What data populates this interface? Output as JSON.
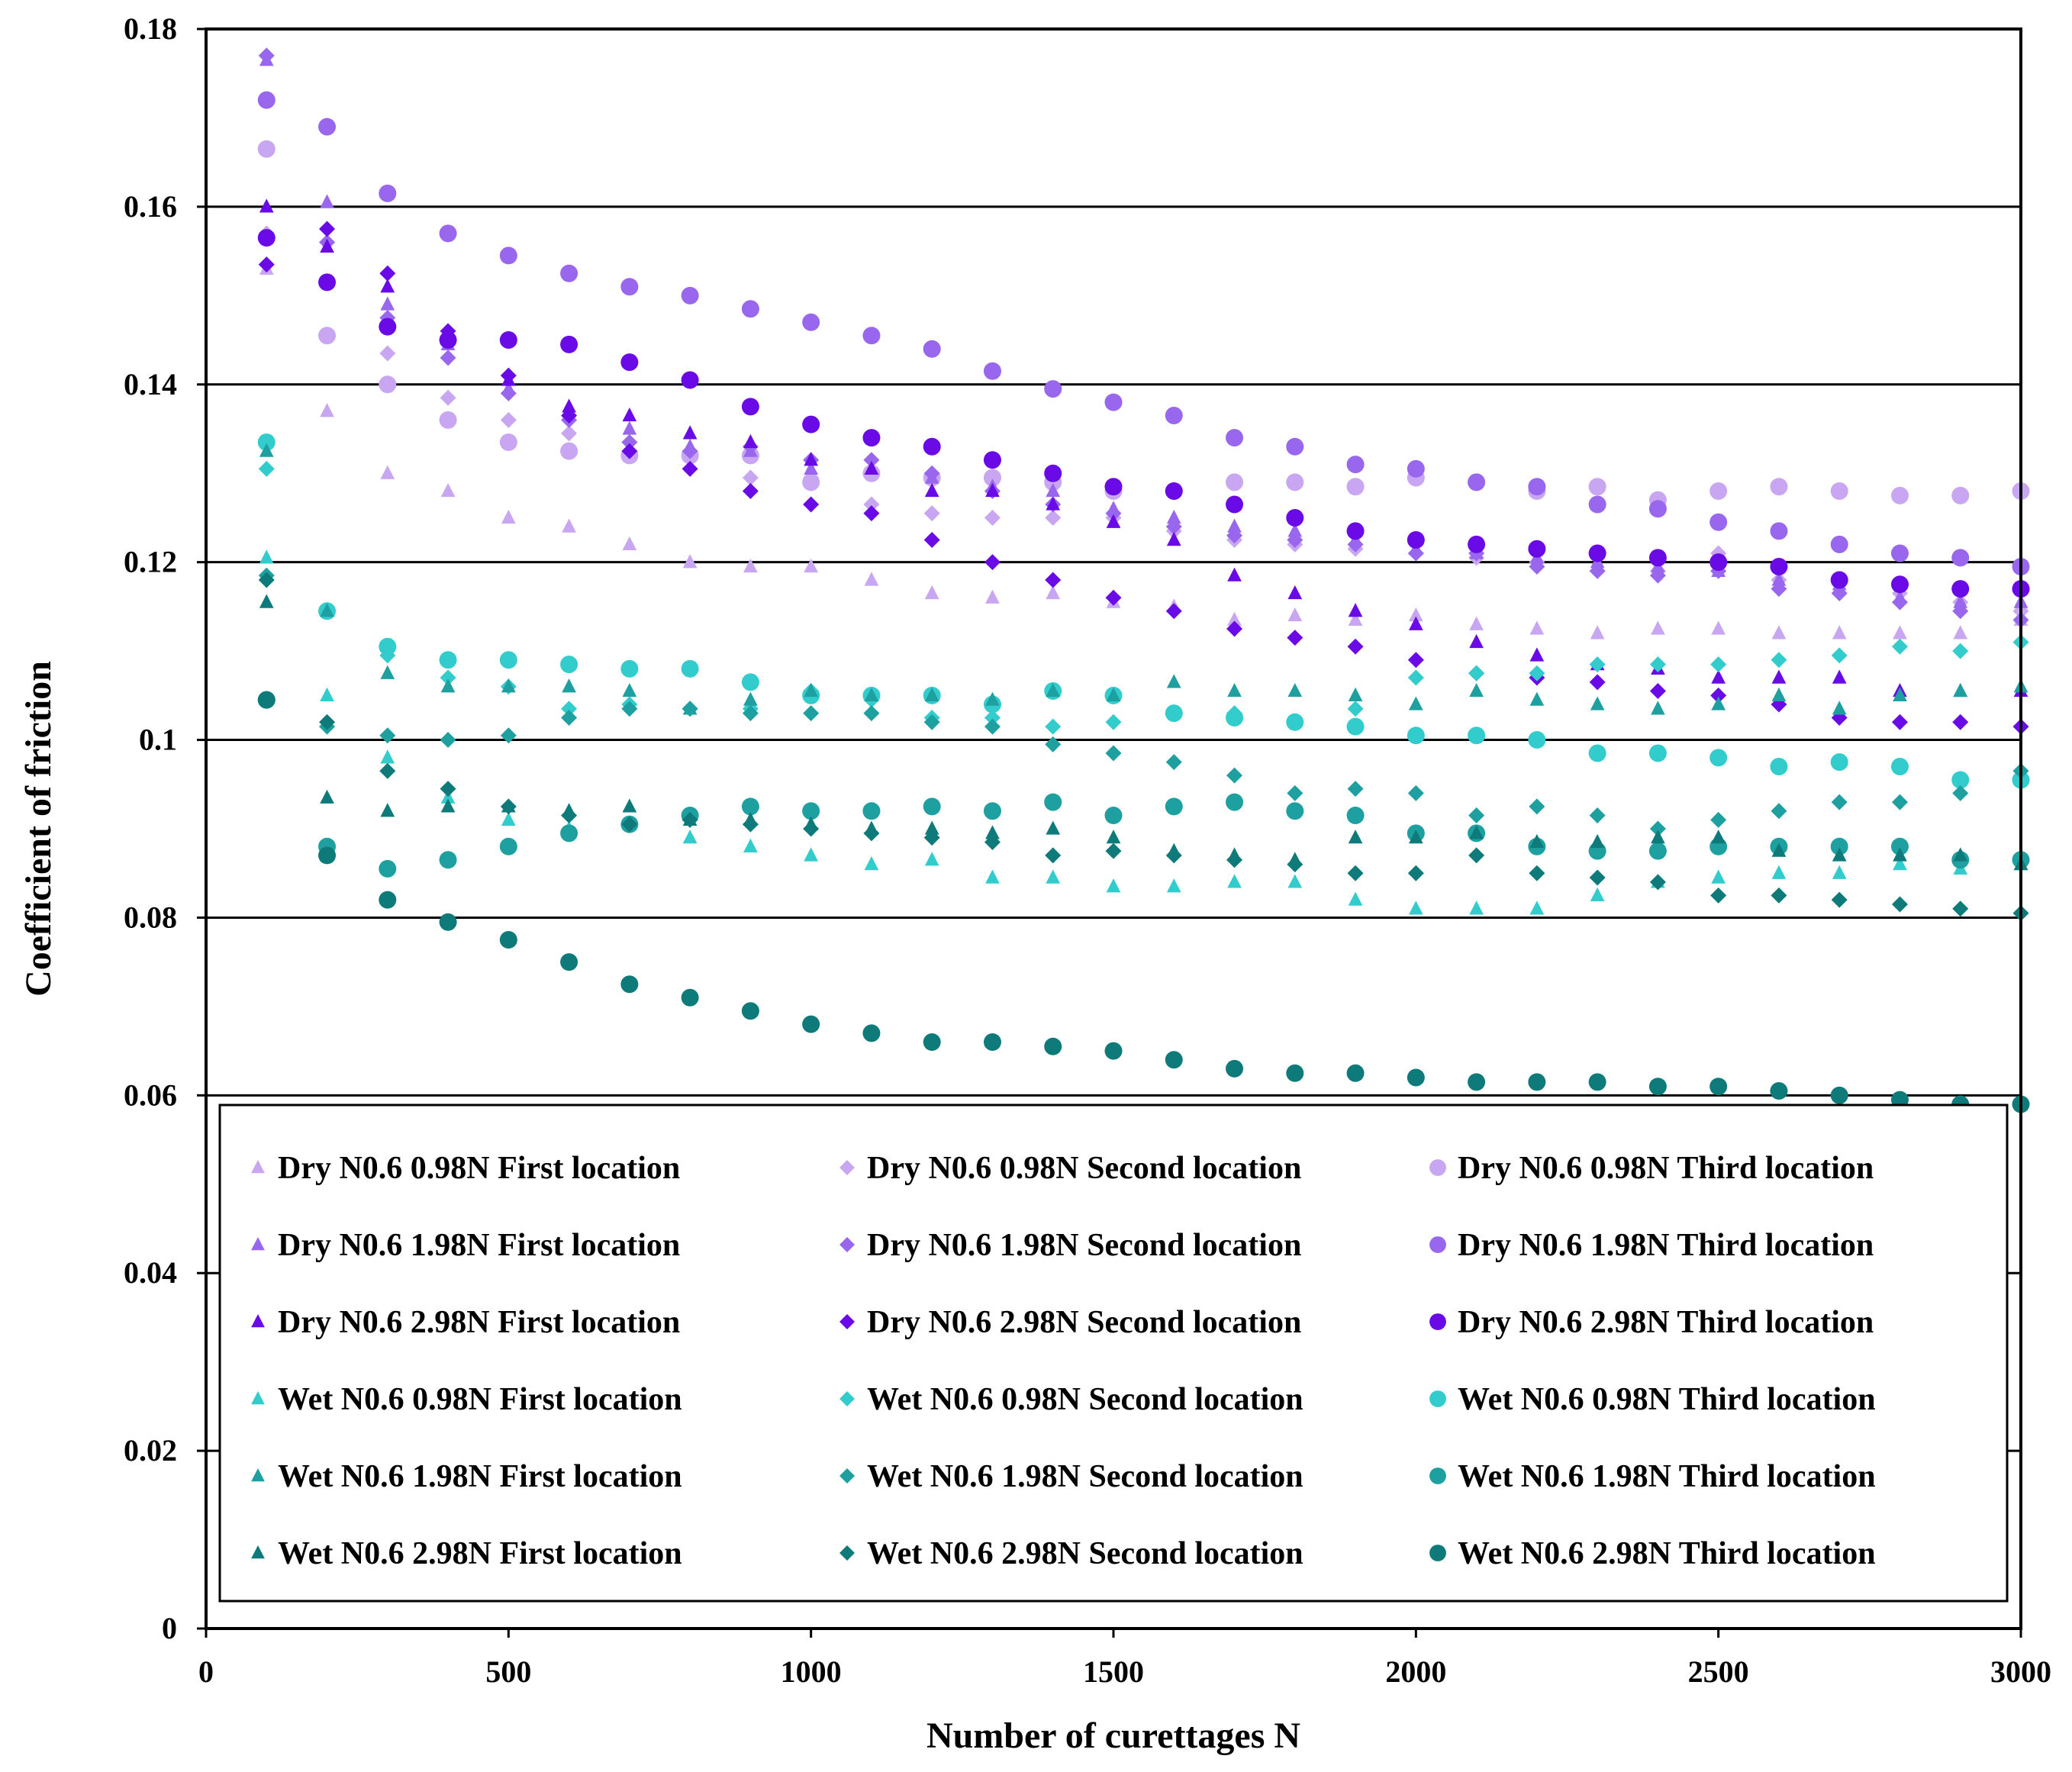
{
  "chart_data": {
    "type": "scatter",
    "xlabel": "Number  of curettages N",
    "ylabel": "Coefficient  of friction",
    "xlim": [
      0,
      3000
    ],
    "ylim": [
      0,
      0.18
    ],
    "x_ticks": [
      0,
      500,
      1000,
      1500,
      2000,
      2500,
      3000
    ],
    "y_ticks": [
      0,
      0.02,
      0.04,
      0.06,
      0.08,
      0.1,
      0.12,
      0.14,
      0.16,
      0.18
    ],
    "x_tick_labels": [
      "0",
      "500",
      "1000",
      "1500",
      "2000",
      "2500",
      "3000"
    ],
    "y_tick_labels": [
      "0",
      "0.02",
      "0.04",
      "0.06",
      "0.08",
      "0.1",
      "0.12",
      "0.14",
      "0.16",
      "0.18"
    ],
    "gridlines": "horizontal",
    "legend_position": "bottom-inside",
    "x": [
      100,
      200,
      300,
      400,
      500,
      600,
      700,
      800,
      900,
      1000,
      1100,
      1200,
      1300,
      1400,
      1500,
      1600,
      1700,
      1800,
      1900,
      2000,
      2100,
      2200,
      2300,
      2400,
      2500,
      2600,
      2700,
      2800,
      2900,
      3000
    ],
    "series": [
      {
        "name": "Dry N0.6 0.98N First location",
        "marker": "triangle",
        "color": "#c9a6f2",
        "values": [
          0.153,
          0.137,
          0.13,
          0.128,
          0.125,
          0.124,
          0.122,
          0.12,
          0.1195,
          0.1195,
          0.118,
          0.1165,
          0.116,
          0.1165,
          0.1155,
          0.115,
          0.1135,
          0.114,
          0.1135,
          0.114,
          0.113,
          0.1125,
          0.112,
          0.1125,
          0.1125,
          0.112,
          0.112,
          0.112,
          0.112,
          0.1135
        ]
      },
      {
        "name": "Dry N0.6 0.98N Second location",
        "marker": "diamond",
        "color": "#c9a6f2",
        "values": [
          0.157,
          0.1455,
          0.1435,
          0.1385,
          0.136,
          0.1345,
          0.1335,
          0.1325,
          0.1295,
          0.1295,
          0.1265,
          0.1255,
          0.125,
          0.125,
          0.125,
          0.1235,
          0.1225,
          0.122,
          0.1215,
          0.121,
          0.1205,
          0.12,
          0.119,
          0.119,
          0.121,
          0.118,
          0.1165,
          0.1165,
          0.1155,
          0.1145
        ]
      },
      {
        "name": "Dry N0.6 0.98N Third location",
        "marker": "circle",
        "color": "#c9a6f2",
        "values": [
          0.1665,
          0.1455,
          0.14,
          0.136,
          0.1335,
          0.1325,
          0.132,
          0.132,
          0.132,
          0.129,
          0.13,
          0.1295,
          0.1295,
          0.129,
          0.128,
          0.128,
          0.129,
          0.129,
          0.1285,
          0.1295,
          0.129,
          0.128,
          0.1285,
          0.127,
          0.128,
          0.1285,
          0.128,
          0.1275,
          0.1275,
          0.128
        ]
      },
      {
        "name": "Dry N0.6 1.98N First location",
        "marker": "triangle",
        "color": "#9966ee",
        "values": [
          0.1765,
          0.1605,
          0.149,
          0.1445,
          0.1395,
          0.137,
          0.135,
          0.133,
          0.1325,
          0.1305,
          0.1305,
          0.1295,
          0.1285,
          0.128,
          0.126,
          0.125,
          0.124,
          0.1235,
          0.1225,
          0.1215,
          0.121,
          0.1205,
          0.12,
          0.1195,
          0.119,
          0.118,
          0.1175,
          0.116,
          0.1155,
          0.1155
        ]
      },
      {
        "name": "Dry N0.6 1.98N Second location",
        "marker": "diamond",
        "color": "#9966ee",
        "values": [
          0.177,
          0.156,
          0.1475,
          0.143,
          0.139,
          0.136,
          0.1335,
          0.1325,
          0.133,
          0.1315,
          0.1315,
          0.13,
          0.128,
          0.1265,
          0.1255,
          0.124,
          0.123,
          0.1225,
          0.122,
          0.121,
          0.121,
          0.1195,
          0.119,
          0.1185,
          0.119,
          0.117,
          0.1165,
          0.1155,
          0.1145,
          0.1135
        ]
      },
      {
        "name": "Dry N0.6 1.98N Third location",
        "marker": "circle",
        "color": "#9966ee",
        "values": [
          0.172,
          0.169,
          0.1615,
          0.157,
          0.1545,
          0.1525,
          0.151,
          0.15,
          0.1485,
          0.147,
          0.1455,
          0.144,
          0.1415,
          0.1395,
          0.138,
          0.1365,
          0.134,
          0.133,
          0.131,
          0.1305,
          0.129,
          0.1285,
          0.1265,
          0.126,
          0.1245,
          0.1235,
          0.122,
          0.121,
          0.1205,
          0.1195
        ]
      },
      {
        "name": "Dry N0.6 2.98N First location",
        "marker": "triangle",
        "color": "#6a0ae6",
        "values": [
          0.16,
          0.1555,
          0.151,
          0.1455,
          0.1405,
          0.1375,
          0.1365,
          0.1345,
          0.1335,
          0.1315,
          0.1305,
          0.128,
          0.128,
          0.1265,
          0.1245,
          0.1225,
          0.1185,
          0.1165,
          0.1145,
          0.113,
          0.111,
          0.1095,
          0.1085,
          0.108,
          0.107,
          0.107,
          0.107,
          0.1055,
          0.1055,
          0.1055
        ]
      },
      {
        "name": "Dry N0.6 2.98N Second location",
        "marker": "diamond",
        "color": "#6a0ae6",
        "values": [
          0.1535,
          0.1575,
          0.1525,
          0.146,
          0.141,
          0.1365,
          0.1325,
          0.1305,
          0.128,
          0.1265,
          0.1255,
          0.1225,
          0.12,
          0.118,
          0.116,
          0.1145,
          0.1125,
          0.1115,
          0.1105,
          0.109,
          0.1075,
          0.107,
          0.1065,
          0.1055,
          0.105,
          0.104,
          0.1025,
          0.102,
          0.102,
          0.1015
        ]
      },
      {
        "name": "Dry N0.6 2.98N Third location",
        "marker": "circle",
        "color": "#6a0ae6",
        "values": [
          0.1565,
          0.1515,
          0.1465,
          0.145,
          0.145,
          0.1445,
          0.1425,
          0.1405,
          0.1375,
          0.1355,
          0.134,
          0.133,
          0.1315,
          0.13,
          0.1285,
          0.128,
          0.1265,
          0.125,
          0.1235,
          0.1225,
          0.122,
          0.1215,
          0.121,
          0.1205,
          0.12,
          0.1195,
          0.118,
          0.1175,
          0.117,
          0.117
        ]
      },
      {
        "name": "Wet N0.6 0.98N First location",
        "marker": "triangle",
        "color": "#33cccc",
        "values": [
          0.1205,
          0.105,
          0.098,
          0.0935,
          0.091,
          0.09,
          0.0905,
          0.089,
          0.088,
          0.087,
          0.086,
          0.0865,
          0.0845,
          0.0845,
          0.0835,
          0.0835,
          0.084,
          0.084,
          0.082,
          0.081,
          0.081,
          0.081,
          0.0825,
          0.084,
          0.0845,
          0.085,
          0.085,
          0.086,
          0.0855,
          0.086
        ]
      },
      {
        "name": "Wet N0.6 0.98N Second location",
        "marker": "diamond",
        "color": "#33cccc",
        "values": [
          0.1305,
          0.1145,
          0.1095,
          0.107,
          0.106,
          0.1035,
          0.104,
          0.1035,
          0.1035,
          0.1055,
          0.1045,
          0.1025,
          0.1025,
          0.1015,
          0.102,
          0.103,
          0.103,
          0.102,
          0.1035,
          0.107,
          0.1075,
          0.1075,
          0.1085,
          0.1085,
          0.1085,
          0.109,
          0.1095,
          0.1105,
          0.11,
          0.111
        ]
      },
      {
        "name": "Wet N0.6 0.98N Third location",
        "marker": "circle",
        "color": "#33cccc",
        "values": [
          0.1335,
          0.1145,
          0.1105,
          0.109,
          0.109,
          0.1085,
          0.108,
          0.108,
          0.1065,
          0.105,
          0.105,
          0.105,
          0.104,
          0.1055,
          0.105,
          0.103,
          0.1025,
          0.102,
          0.1015,
          0.1005,
          0.1005,
          0.1,
          0.0985,
          0.0985,
          0.098,
          0.097,
          0.0975,
          0.097,
          0.0955,
          0.0955
        ]
      },
      {
        "name": "Wet N0.6 1.98N First location",
        "marker": "triangle",
        "color": "#1ea0a0",
        "values": [
          0.1325,
          0.1145,
          0.1075,
          0.106,
          0.106,
          0.106,
          0.1055,
          0.1035,
          0.1045,
          0.1055,
          0.105,
          0.105,
          0.1045,
          0.1055,
          0.105,
          0.1065,
          0.1055,
          0.1055,
          0.105,
          0.104,
          0.1055,
          0.1045,
          0.104,
          0.1035,
          0.104,
          0.105,
          0.1035,
          0.105,
          0.1055,
          0.106
        ]
      },
      {
        "name": "Wet N0.6 1.98N Second location",
        "marker": "diamond",
        "color": "#1ea0a0",
        "values": [
          0.1185,
          0.1015,
          0.1005,
          0.1,
          0.1005,
          0.1025,
          0.1035,
          0.1035,
          0.103,
          0.103,
          0.103,
          0.102,
          0.1015,
          0.0995,
          0.0985,
          0.0975,
          0.096,
          0.094,
          0.0945,
          0.094,
          0.0915,
          0.0925,
          0.0915,
          0.09,
          0.091,
          0.092,
          0.093,
          0.093,
          0.094,
          0.0965
        ]
      },
      {
        "name": "Wet N0.6 1.98N Third location",
        "marker": "circle",
        "color": "#1ea0a0",
        "values": [
          0.1045,
          0.088,
          0.0855,
          0.0865,
          0.088,
          0.0895,
          0.0905,
          0.0915,
          0.0925,
          0.092,
          0.092,
          0.0925,
          0.092,
          0.093,
          0.0915,
          0.0925,
          0.093,
          0.092,
          0.0915,
          0.0895,
          0.0895,
          0.088,
          0.0875,
          0.0875,
          0.088,
          0.088,
          0.088,
          0.088,
          0.0865,
          0.0865
        ]
      },
      {
        "name": "Wet N0.6 2.98N First location",
        "marker": "triangle",
        "color": "#0e7a7a",
        "values": [
          0.1155,
          0.0935,
          0.092,
          0.0925,
          0.0925,
          0.092,
          0.0925,
          0.091,
          0.091,
          0.0905,
          0.09,
          0.09,
          0.0895,
          0.09,
          0.089,
          0.0875,
          0.087,
          0.0865,
          0.089,
          0.089,
          0.0895,
          0.0885,
          0.0885,
          0.089,
          0.089,
          0.0875,
          0.087,
          0.087,
          0.087,
          0.086
        ]
      },
      {
        "name": "Wet N0.6 2.98N Second location",
        "marker": "diamond",
        "color": "#0e7a7a",
        "values": [
          0.118,
          0.102,
          0.0965,
          0.0945,
          0.0925,
          0.0915,
          0.0905,
          0.091,
          0.0905,
          0.09,
          0.0895,
          0.089,
          0.0885,
          0.087,
          0.0875,
          0.087,
          0.0865,
          0.086,
          0.085,
          0.085,
          0.087,
          0.085,
          0.0845,
          0.084,
          0.0825,
          0.0825,
          0.082,
          0.0815,
          0.081,
          0.0805
        ]
      },
      {
        "name": "Wet N0.6 2.98N Third location",
        "marker": "circle",
        "color": "#0e7a7a",
        "values": [
          0.1045,
          0.087,
          0.082,
          0.0795,
          0.0775,
          0.075,
          0.0725,
          0.071,
          0.0695,
          0.068,
          0.067,
          0.066,
          0.066,
          0.0655,
          0.065,
          0.064,
          0.063,
          0.0625,
          0.0625,
          0.062,
          0.0615,
          0.0615,
          0.0615,
          0.061,
          0.061,
          0.0605,
          0.06,
          0.0595,
          0.059,
          0.059
        ]
      }
    ]
  }
}
